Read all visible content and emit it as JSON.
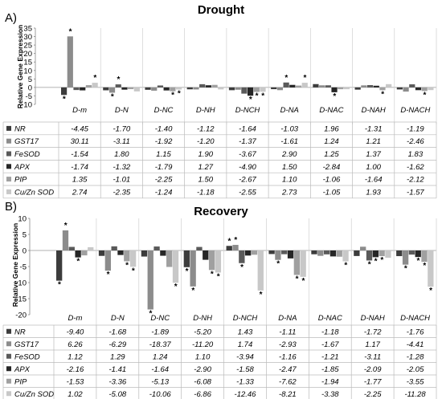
{
  "panels": [
    {
      "letter": "A)",
      "title": "Drought",
      "ylabel": "Relative Gene Expression"
    },
    {
      "letter": "B)",
      "title": "Recovery",
      "ylabel": "Relative Gene Expression"
    }
  ],
  "chart_data": [
    {
      "type": "bar",
      "title": "Drought",
      "ylabel": "Relative Gene Expression",
      "ylim": [
        -10,
        35
      ],
      "yticks": [
        -10,
        -5,
        0,
        5,
        10,
        15,
        20,
        25,
        30,
        35
      ],
      "categories": [
        "D-m",
        "D-N",
        "D-NC",
        "D-NH",
        "D-NCH",
        "D-NA",
        "D-NAC",
        "D-NAH",
        "D-NACH"
      ],
      "series": [
        {
          "name": "NR",
          "color": "#3c3c3c",
          "values": [
            -4.45,
            -1.7,
            -1.4,
            -1.12,
            -1.64,
            -1.03,
            1.96,
            -1.31,
            -1.19
          ]
        },
        {
          "name": "GST17",
          "color": "#8c8c8c",
          "values": [
            30.11,
            -3.11,
            -1.92,
            -1.2,
            -1.37,
            -1.61,
            1.24,
            1.21,
            -2.46
          ]
        },
        {
          "name": "FeSOD",
          "color": "#5a5a5a",
          "values": [
            -1.54,
            1.8,
            1.15,
            1.9,
            -3.67,
            2.9,
            1.25,
            1.37,
            1.83
          ]
        },
        {
          "name": "APX",
          "color": "#262626",
          "values": [
            -1.74,
            -1.32,
            -1.79,
            1.27,
            -4.9,
            1.5,
            -2.84,
            1.0,
            -1.62
          ]
        },
        {
          "name": "PIP",
          "color": "#a0a0a0",
          "values": [
            1.35,
            -1.01,
            -2.25,
            1.5,
            -2.67,
            1.1,
            -1.06,
            -1.64,
            -2.12
          ]
        },
        {
          "name": "Cu/Zn SOD",
          "color": "#c8c8c8",
          "values": [
            2.74,
            -2.35,
            -1.24,
            -1.18,
            -2.55,
            2.73,
            -1.05,
            1.93,
            -1.57
          ]
        }
      ],
      "asterisks": [
        {
          "category": "D-m",
          "series": 0
        },
        {
          "category": "D-m",
          "series": 1
        },
        {
          "category": "D-m",
          "series": 5
        },
        {
          "category": "D-N",
          "series": 1
        },
        {
          "category": "D-N",
          "series": 2
        },
        {
          "category": "D-NC",
          "series": 4
        },
        {
          "category": "D-NC",
          "series": 5
        },
        {
          "category": "D-NCH",
          "series": 3
        },
        {
          "category": "D-NCH",
          "series": 4
        },
        {
          "category": "D-NCH",
          "series": 5
        },
        {
          "category": "D-NA",
          "series": 2
        },
        {
          "category": "D-NA",
          "series": 5
        },
        {
          "category": "D-NAC",
          "series": 3
        },
        {
          "category": "D-NAH",
          "series": 4
        },
        {
          "category": "D-NACH",
          "series": 4
        }
      ]
    },
    {
      "type": "bar",
      "title": "Recovery",
      "ylabel": "Relative Gene Expression",
      "ylim": [
        -20,
        10
      ],
      "yticks": [
        -20,
        -15,
        -10,
        -5,
        0,
        5,
        10
      ],
      "categories": [
        "D-m",
        "D-N",
        "D-NC",
        "D-NH",
        "D-NCH",
        "D-NA",
        "D-NAC",
        "D-NAH",
        "D-NACH"
      ],
      "series": [
        {
          "name": "NR",
          "color": "#3c3c3c",
          "values": [
            -9.4,
            -1.68,
            -1.89,
            -5.2,
            1.43,
            -1.11,
            -1.18,
            -1.72,
            -1.76
          ]
        },
        {
          "name": "GST17",
          "color": "#8c8c8c",
          "values": [
            6.26,
            -6.29,
            -18.37,
            -11.2,
            1.74,
            -2.93,
            -1.67,
            1.17,
            -4.41
          ]
        },
        {
          "name": "FeSOD",
          "color": "#5a5a5a",
          "values": [
            1.12,
            1.29,
            1.24,
            1.1,
            -3.94,
            -1.16,
            -1.21,
            -3.11,
            -1.28
          ]
        },
        {
          "name": "APX",
          "color": "#262626",
          "values": [
            -2.16,
            -1.41,
            -1.64,
            -2.9,
            -1.58,
            -2.47,
            -1.85,
            -2.09,
            -2.05
          ]
        },
        {
          "name": "PIP",
          "color": "#a0a0a0",
          "values": [
            -1.53,
            -3.36,
            -5.13,
            -6.08,
            -1.33,
            -7.62,
            -1.94,
            -1.77,
            -3.55
          ]
        },
        {
          "name": "Cu/Zn SOD",
          "color": "#c8c8c8",
          "values": [
            1.02,
            -5.08,
            -10.06,
            -6.86,
            -12.46,
            -8.21,
            -3.38,
            -2.25,
            -11.28
          ]
        }
      ],
      "asterisks": [
        {
          "category": "D-m",
          "series": 0
        },
        {
          "category": "D-m",
          "series": 1
        },
        {
          "category": "D-m",
          "series": 3
        },
        {
          "category": "D-N",
          "series": 1
        },
        {
          "category": "D-N",
          "series": 4
        },
        {
          "category": "D-N",
          "series": 5
        },
        {
          "category": "D-NC",
          "series": 1
        },
        {
          "category": "D-NC",
          "series": 5
        },
        {
          "category": "D-NH",
          "series": 0
        },
        {
          "category": "D-NH",
          "series": 1
        },
        {
          "category": "D-NH",
          "series": 4
        },
        {
          "category": "D-NH",
          "series": 5
        },
        {
          "category": "D-NCH",
          "series": 0
        },
        {
          "category": "D-NCH",
          "series": 1
        },
        {
          "category": "D-NCH",
          "series": 2
        },
        {
          "category": "D-NCH",
          "series": 5
        },
        {
          "category": "D-NA",
          "series": 1
        },
        {
          "category": "D-NA",
          "series": 4
        },
        {
          "category": "D-NA",
          "series": 5
        },
        {
          "category": "D-NAC",
          "series": 5
        },
        {
          "category": "D-NAH",
          "series": 2
        },
        {
          "category": "D-NAH",
          "series": 3
        },
        {
          "category": "D-NAH",
          "series": 4
        },
        {
          "category": "D-NACH",
          "series": 1
        },
        {
          "category": "D-NACH",
          "series": 3
        },
        {
          "category": "D-NACH",
          "series": 4
        },
        {
          "category": "D-NACH",
          "series": 5
        }
      ]
    }
  ]
}
